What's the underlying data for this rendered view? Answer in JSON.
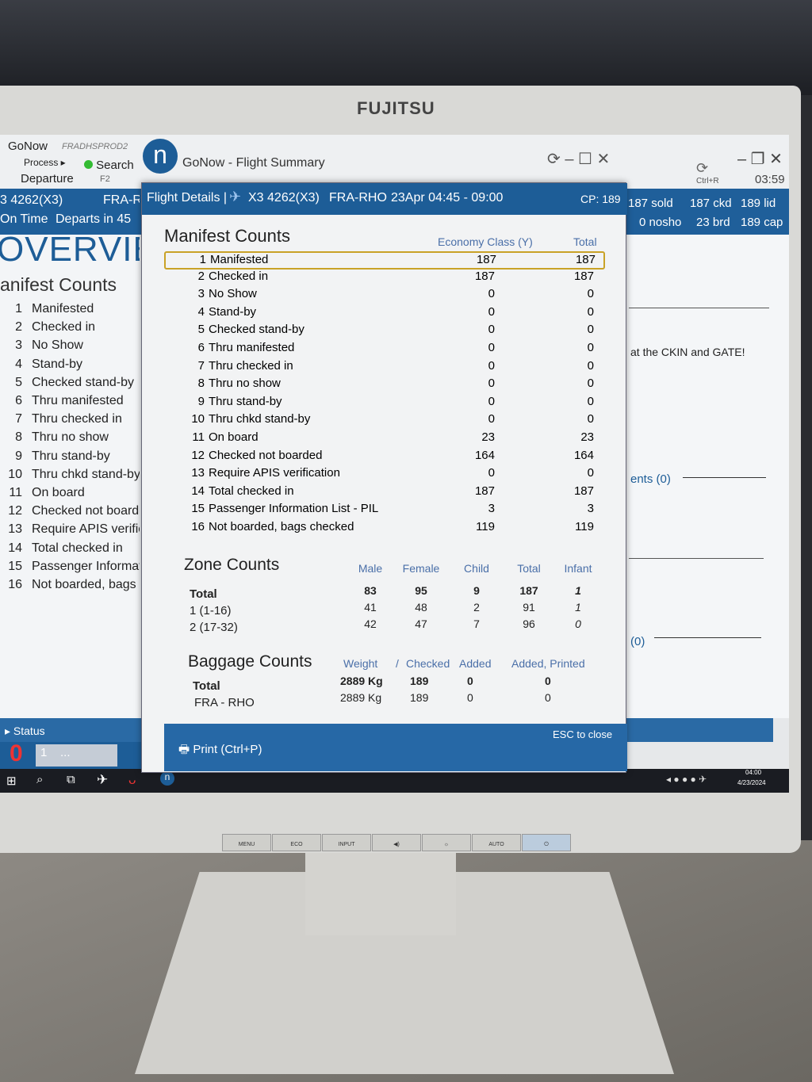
{
  "monitor": {
    "brand": "FUJITSU",
    "buttons": [
      "MENU",
      "ECO",
      "INPUT",
      "◀)",
      "☼",
      "AUTO",
      "⏻"
    ]
  },
  "app": {
    "name": "GoNow",
    "env": "FRADHSPROD2",
    "process": "Process ▸",
    "departure": "Departure",
    "search": "Search",
    "search_key": "F2",
    "window_title": "GoNow - Flight Summary",
    "refresh_key": "Ctrl+R",
    "clock": "03:59",
    "logo_letter": "n"
  },
  "flight_bar": {
    "flight": "3 4262(X3)",
    "route": "FRA-R",
    "status": "On Time",
    "departs": "Departs in 45",
    "sold": "187 sold",
    "ckd": "187 ckd",
    "lid": "189 lid",
    "nosho": "0 nosho",
    "brd": "23 brd",
    "cap": "189 cap"
  },
  "left_panel": {
    "heading": "OVERVIE",
    "section": "anifest Counts",
    "items": [
      "Manifested",
      "Checked in",
      "No Show",
      "Stand-by",
      "Checked stand-by",
      "Thru manifested",
      "Thru checked in",
      "Thru no show",
      "Thru stand-by",
      "Thru chkd stand-by",
      "On board",
      "Checked not boarde",
      "Require APIS verific",
      "Total checked in",
      "Passenger Informat",
      "Not boarded, bags c"
    ],
    "status": "Status",
    "status_count": "0",
    "status_field": "1",
    "status_more": "..."
  },
  "right_panel": {
    "notice": "at the CKIN and GATE!",
    "ents": "ents (0)",
    "zero": "(0)"
  },
  "dialog": {
    "title": "Flight Details |",
    "flight": "X3 4262(X3)",
    "route": "FRA-RHO",
    "date": "23Apr 04:45 - 09:00",
    "cp": "CP: 189",
    "manifest": {
      "heading": "Manifest Counts",
      "col_economy": "Economy Class (Y)",
      "col_total": "Total",
      "rows": [
        {
          "n": "1",
          "label": "Manifested",
          "economy": "187",
          "total": "187",
          "highlighted": true
        },
        {
          "n": "2",
          "label": "Checked in",
          "economy": "187",
          "total": "187"
        },
        {
          "n": "3",
          "label": "No Show",
          "economy": "0",
          "total": "0"
        },
        {
          "n": "4",
          "label": "Stand-by",
          "economy": "0",
          "total": "0"
        },
        {
          "n": "5",
          "label": "Checked stand-by",
          "economy": "0",
          "total": "0"
        },
        {
          "n": "6",
          "label": "Thru manifested",
          "economy": "0",
          "total": "0"
        },
        {
          "n": "7",
          "label": "Thru checked in",
          "economy": "0",
          "total": "0"
        },
        {
          "n": "8",
          "label": "Thru no show",
          "economy": "0",
          "total": "0"
        },
        {
          "n": "9",
          "label": "Thru stand-by",
          "economy": "0",
          "total": "0"
        },
        {
          "n": "10",
          "label": "Thru chkd stand-by",
          "economy": "0",
          "total": "0"
        },
        {
          "n": "11",
          "label": "On board",
          "economy": "23",
          "total": "23"
        },
        {
          "n": "12",
          "label": "Checked not boarded",
          "economy": "164",
          "total": "164"
        },
        {
          "n": "13",
          "label": "Require APIS verification",
          "economy": "0",
          "total": "0"
        },
        {
          "n": "14",
          "label": "Total checked in",
          "economy": "187",
          "total": "187"
        },
        {
          "n": "15",
          "label": "Passenger Information List - PIL",
          "economy": "3",
          "total": "3"
        },
        {
          "n": "16",
          "label": "Not boarded, bags checked",
          "economy": "119",
          "total": "119"
        }
      ]
    },
    "zones": {
      "heading": "Zone Counts",
      "cols": [
        "Male",
        "Female",
        "Child",
        "Total",
        "Infant"
      ],
      "rows": [
        {
          "label": "Total",
          "vals": [
            "83",
            "95",
            "9",
            "187",
            "1"
          ]
        },
        {
          "label": "1 (1-16)",
          "vals": [
            "41",
            "48",
            "2",
            "91",
            "1"
          ]
        },
        {
          "label": "2 (17-32)",
          "vals": [
            "42",
            "47",
            "7",
            "96",
            "0"
          ]
        }
      ]
    },
    "baggage": {
      "heading": "Baggage Counts",
      "cols": [
        "Weight",
        "/",
        "Checked",
        "Added",
        "Added, Printed"
      ],
      "rows": [
        {
          "label": "Total",
          "vals": [
            "2889 Kg",
            "189",
            "0",
            "0"
          ]
        },
        {
          "label": "FRA - RHO",
          "vals": [
            "2889 Kg",
            "189",
            "0",
            "0"
          ]
        }
      ]
    },
    "print": "Print (Ctrl+P)",
    "esc": "ESC to close"
  },
  "taskbar": {
    "time": "04:00",
    "date": "4/23/2024"
  }
}
